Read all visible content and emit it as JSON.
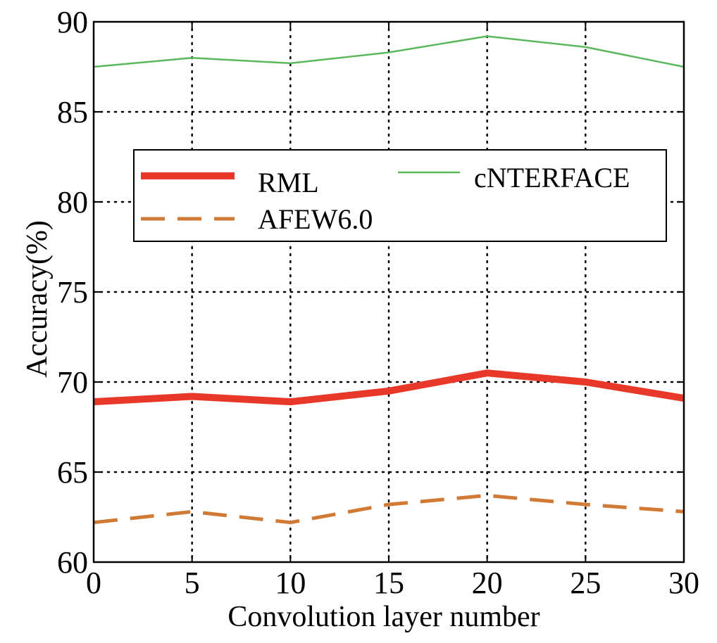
{
  "chart_data": {
    "type": "line",
    "title": "",
    "xlabel": "Convolution layer number",
    "ylabel": "Accuracy(%)",
    "xlim": [
      0,
      30
    ],
    "ylim": [
      60,
      90
    ],
    "xticks": [
      "0",
      "5",
      "10",
      "15",
      "20",
      "25",
      "30"
    ],
    "yticks": [
      "60",
      "65",
      "70",
      "75",
      "80",
      "85",
      "90"
    ],
    "grid": true,
    "legend_position": "upper-middle",
    "x": [
      0,
      5,
      10,
      15,
      20,
      25,
      30
    ],
    "series": [
      {
        "name": "RML",
        "values": [
          68.9,
          69.2,
          68.9,
          69.5,
          70.5,
          70.0,
          69.1
        ],
        "color": "#e8382a",
        "style": "solid-thick"
      },
      {
        "name": "AFEW6.0",
        "values": [
          62.2,
          62.8,
          62.2,
          63.2,
          63.7,
          63.2,
          62.8
        ],
        "color": "#d07a35",
        "style": "dashed"
      },
      {
        "name": "cNTERFACE",
        "values": [
          87.5,
          88.0,
          87.7,
          88.3,
          89.2,
          88.6,
          87.5
        ],
        "color": "#5cb85c",
        "style": "solid-thin"
      }
    ]
  }
}
